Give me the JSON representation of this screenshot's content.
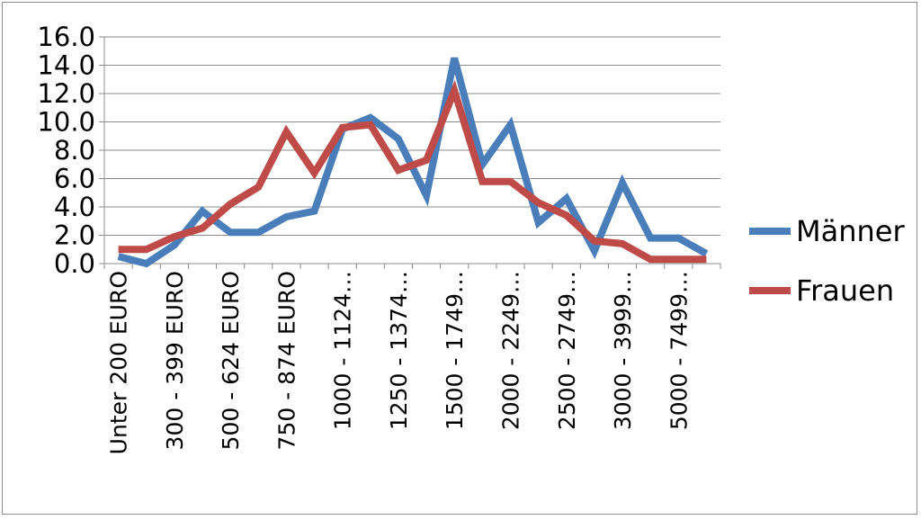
{
  "chart_data": {
    "type": "line",
    "title": "",
    "xlabel": "",
    "ylabel": "",
    "ylim": [
      0,
      16
    ],
    "yticks": [
      "0.0",
      "2.0",
      "4.0",
      "6.0",
      "8.0",
      "10.0",
      "12.0",
      "14.0",
      "16.0"
    ],
    "grid": true,
    "legend_position": "right",
    "x_labels_shown": [
      "Unter 200 EURO",
      "300 - 399 EURO",
      "500 - 624 EURO",
      "750 - 874 EURO",
      "1000 - 1124…",
      "1250 - 1374…",
      "1500 - 1749…",
      "2000 - 2249…",
      "2500 - 2749…",
      "3000 - 3999…",
      "5000 - 7499…"
    ],
    "categories": [
      "Unter 200 EURO",
      "",
      "300 - 399 EURO",
      "",
      "500 - 624 EURO",
      "",
      "750 - 874 EURO",
      "",
      "1000 - 1124…",
      "",
      "1250 - 1374…",
      "",
      "1500 - 1749…",
      "",
      "2000 - 2249…",
      "",
      "2500 - 2749…",
      "",
      "3000 - 3999…",
      "",
      "5000 - 7499…",
      ""
    ],
    "series": [
      {
        "name": "Männer",
        "color": "#4a7ebb",
        "values": [
          0.5,
          0.0,
          1.3,
          3.7,
          2.2,
          2.2,
          3.3,
          3.7,
          9.5,
          10.3,
          8.8,
          4.8,
          14.5,
          7.0,
          9.8,
          2.9,
          4.6,
          0.9,
          5.7,
          1.8,
          1.8,
          0.7
        ]
      },
      {
        "name": "Frauen",
        "color": "#be4b48",
        "values": [
          1.0,
          1.0,
          1.9,
          2.5,
          4.2,
          5.4,
          9.3,
          6.4,
          9.6,
          9.8,
          6.6,
          7.3,
          12.2,
          5.8,
          5.8,
          4.3,
          3.4,
          1.6,
          1.4,
          0.3,
          0.3,
          0.3
        ]
      }
    ]
  }
}
